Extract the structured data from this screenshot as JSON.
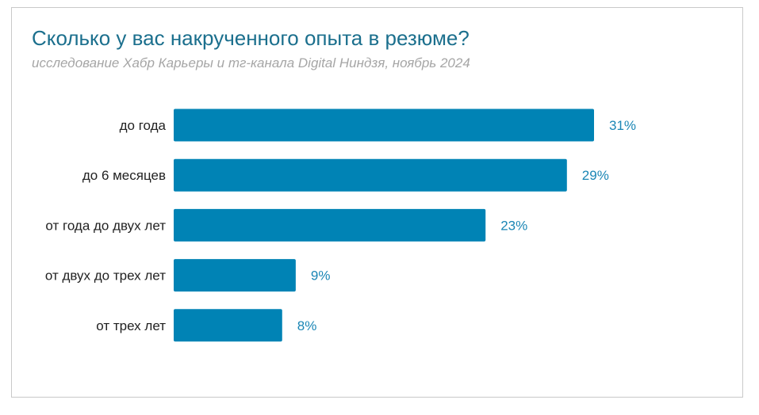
{
  "colors": {
    "bar": "#0083b5",
    "value_label": "#1a86b5",
    "title": "#1b6f8d",
    "subtitle": "#a6a6a6"
  },
  "chart_data": {
    "type": "bar",
    "orientation": "horizontal",
    "title": "Сколько у вас накрученного опыта в резюме?",
    "subtitle": "исследование Хабр Карьеры и тг-канала Digital Ниндзя, ноябрь 2024",
    "categories": [
      "до года",
      "до 6 месяцев",
      "от года до двух лет",
      "от двух до трех лет",
      "от трех лет"
    ],
    "values": [
      31,
      29,
      23,
      9,
      8
    ],
    "value_labels": [
      "31%",
      "29%",
      "23%",
      "9%",
      "8%"
    ],
    "unit": "%",
    "xlim": [
      0,
      31
    ],
    "grid": false,
    "legend": "none"
  }
}
